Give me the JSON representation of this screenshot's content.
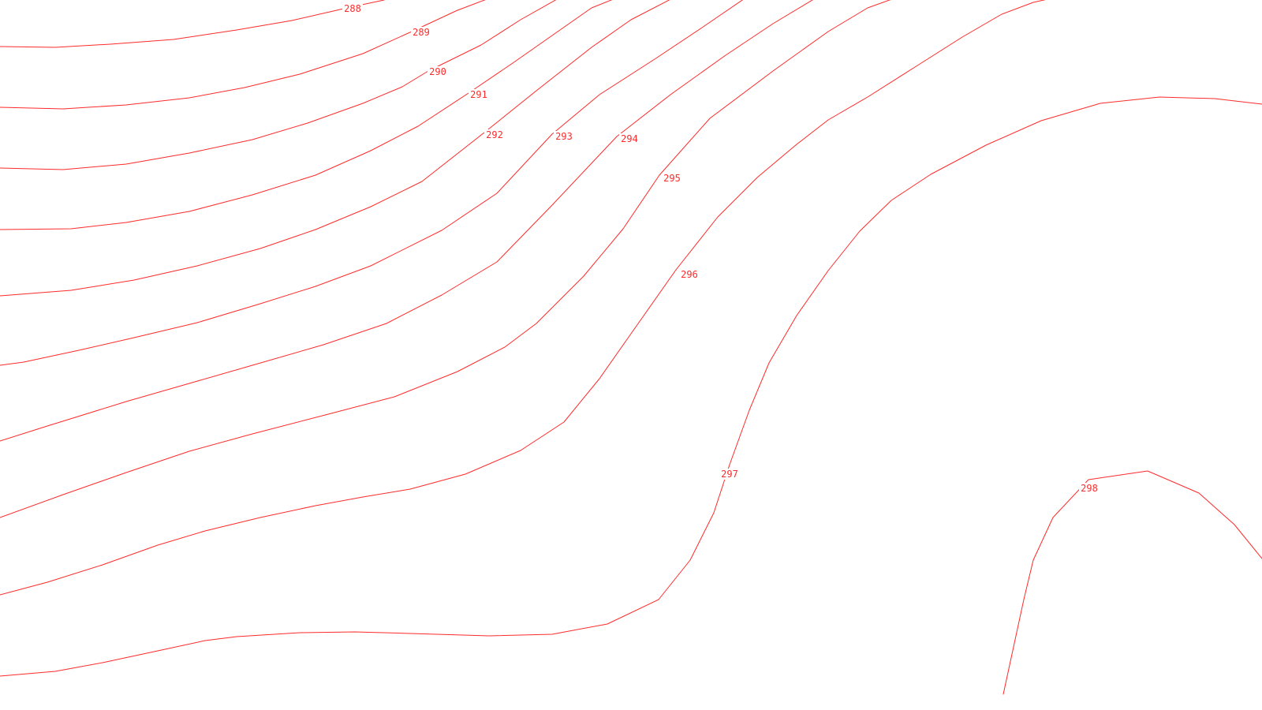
{
  "map": {
    "line_color": "#ff2a2a",
    "background_color": "#ffffff"
  },
  "contours": [
    {
      "id": "288",
      "label": "288"
    },
    {
      "id": "289",
      "label": "289"
    },
    {
      "id": "290",
      "label": "290"
    },
    {
      "id": "291",
      "label": "291"
    },
    {
      "id": "292",
      "label": "292"
    },
    {
      "id": "293",
      "label": "293"
    },
    {
      "id": "294",
      "label": "294"
    },
    {
      "id": "295",
      "label": "295"
    },
    {
      "id": "296",
      "label": "296"
    },
    {
      "id": "297",
      "label": "297"
    },
    {
      "id": "298",
      "label": "298"
    }
  ]
}
